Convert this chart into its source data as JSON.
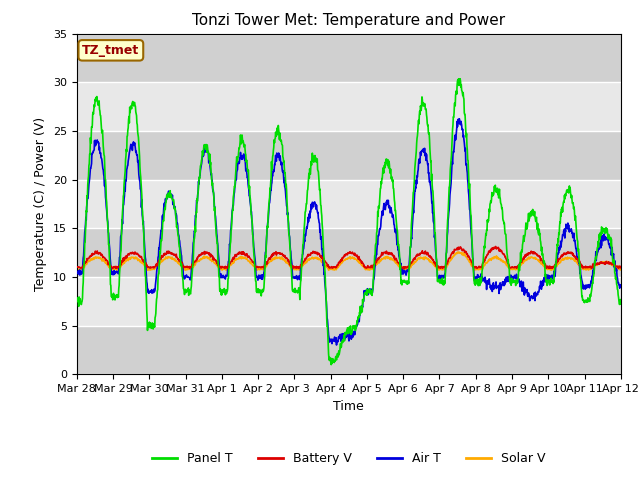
{
  "title": "Tonzi Tower Met: Temperature and Power",
  "xlabel": "Time",
  "ylabel": "Temperature (C) / Power (V)",
  "ylim": [
    0,
    35
  ],
  "yticks": [
    0,
    5,
    10,
    15,
    20,
    25,
    30,
    35
  ],
  "xtick_labels": [
    "Mar 28",
    "Mar 29",
    "Mar 30",
    "Mar 31",
    "Apr 1",
    "Apr 2",
    "Apr 3",
    "Apr 4",
    "Apr 5",
    "Apr 6",
    "Apr 7",
    "Apr 8",
    "Apr 9",
    "Apr 10",
    "Apr 11",
    "Apr 12"
  ],
  "legend_label": "TZ_tmet",
  "panel_color": "#00dd00",
  "battery_color": "#dd0000",
  "air_color": "#0000dd",
  "solar_color": "#ffaa00",
  "background_color": "#e8e8e8",
  "grid_color": "#ffffff",
  "panel_peaks": [
    28.3,
    28.1,
    18.5,
    23.5,
    24.0,
    25.0,
    22.5,
    4.5,
    22.0,
    28.0,
    30.2,
    19.0,
    16.5,
    19.0,
    15.0,
    15.0
  ],
  "air_peaks": [
    24.0,
    23.8,
    18.5,
    23.0,
    22.5,
    22.5,
    17.5,
    4.0,
    17.5,
    23.0,
    26.0,
    9.0,
    8.0,
    15.0,
    14.0,
    7.0
  ],
  "panel_nights": [
    7.5,
    8.0,
    5.0,
    8.5,
    8.5,
    8.5,
    8.5,
    1.5,
    8.5,
    9.5,
    9.5,
    9.5,
    9.5,
    9.5,
    7.5,
    7.5
  ],
  "air_nights": [
    10.5,
    10.5,
    8.5,
    10.0,
    10.0,
    10.0,
    10.0,
    3.5,
    8.5,
    10.5,
    10.0,
    10.0,
    10.0,
    10.0,
    9.0,
    7.5
  ],
  "batt_peaks": [
    12.5,
    12.5,
    12.5,
    12.5,
    12.5,
    12.5,
    12.5,
    12.5,
    12.5,
    12.5,
    13.0,
    13.0,
    12.5,
    12.5,
    11.5,
    11.5
  ],
  "solar_peaks": [
    12.0,
    12.0,
    12.0,
    12.0,
    12.0,
    12.0,
    12.0,
    12.0,
    12.0,
    12.0,
    12.5,
    12.0,
    12.0,
    12.0,
    11.5,
    11.0
  ]
}
